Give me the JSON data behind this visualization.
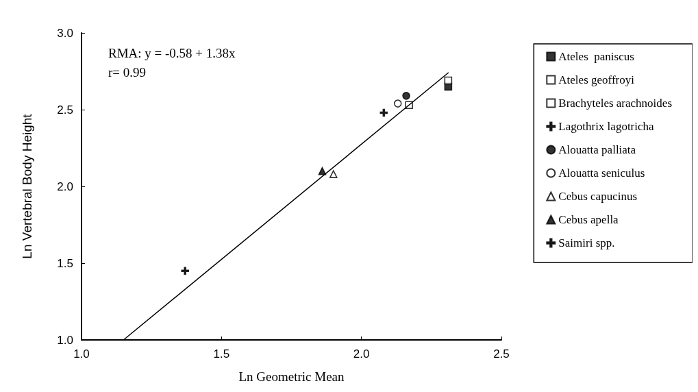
{
  "chart_data": {
    "type": "scatter",
    "xlabel": "Ln Geometric Mean",
    "ylabel": "Ln Vertebral Body Height",
    "xlim": [
      1.0,
      2.5
    ],
    "xticks": [
      {
        "value": 1.0,
        "label": "1.0"
      },
      {
        "value": 1.5,
        "label": "1.5"
      },
      {
        "value": 2.0,
        "label": "2.0"
      },
      {
        "value": 2.5,
        "label": "2.5"
      }
    ],
    "ylim": [
      1.0,
      3.0
    ],
    "yticks": [
      {
        "value": 1.0,
        "label": "1.0"
      },
      {
        "value": 1.5,
        "label": "1.5"
      },
      {
        "value": 2.0,
        "label": "2.0"
      },
      {
        "value": 2.5,
        "label": "2.5"
      },
      {
        "value": 3.0,
        "label": "3.0"
      }
    ],
    "grid": false,
    "legend": "right",
    "annotations": [
      "RMA: y = -0.58 + 1.38x",
      "r= 0.99"
    ],
    "series": [
      {
        "name": "Ateles  paniscus",
        "color": "#000000",
        "marker": "square",
        "x": [
          2.31
        ],
        "values": [
          2.65
        ]
      },
      {
        "name": "Ateles geoffroyi",
        "color": "#ffffff",
        "marker": "square",
        "x": [
          2.17
        ],
        "values": [
          2.53
        ]
      },
      {
        "name": "Brachyteles arachnoides",
        "color": "#ffffff",
        "marker": "square",
        "x": [
          2.31
        ],
        "values": [
          2.69
        ]
      },
      {
        "name": "Lagothrix lagotricha",
        "color": "#000000",
        "marker": "cross",
        "x": [
          2.08
        ],
        "values": [
          2.48
        ]
      },
      {
        "name": "Alouatta palliata",
        "color": "#000000",
        "marker": "circle",
        "x": [
          2.16
        ],
        "values": [
          2.59
        ]
      },
      {
        "name": "Alouatta seniculus",
        "color": "#ffffff",
        "marker": "circle",
        "x": [
          2.13
        ],
        "values": [
          2.54
        ]
      },
      {
        "name": "Cebus capucinus",
        "color": "#ffffff",
        "marker": "triangle",
        "x": [
          1.9
        ],
        "values": [
          2.08
        ]
      },
      {
        "name": "Cebus apella",
        "color": "#000000",
        "marker": "triangle",
        "x": [
          1.86
        ],
        "values": [
          2.1
        ]
      },
      {
        "name": "Saimiri spp.",
        "color": "#000000",
        "marker": "cross",
        "x": [
          1.37
        ],
        "values": [
          1.45
        ]
      },
      {
        "type": "line",
        "color": "#000000",
        "marker": "none",
        "line_style": "solid",
        "x": [
          1.15,
          2.31
        ],
        "values": [
          1.0,
          2.74
        ]
      }
    ]
  }
}
